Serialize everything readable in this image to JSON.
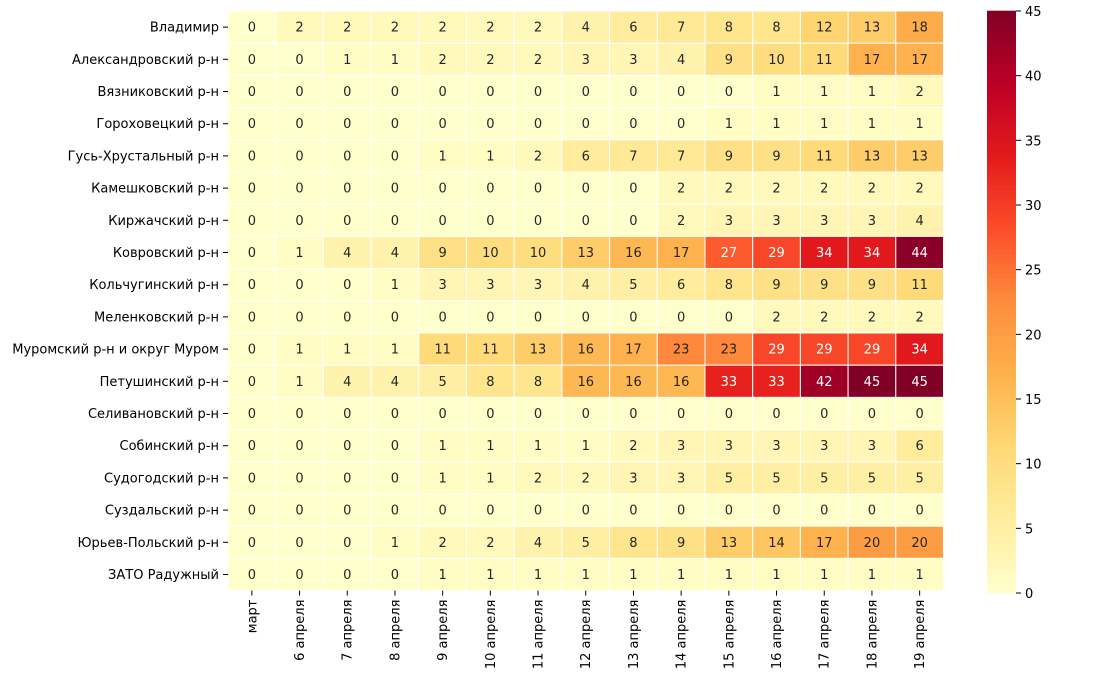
{
  "chart_data": {
    "type": "heatmap",
    "title": "",
    "xlabel": "",
    "ylabel": "",
    "x_categories": [
      "март",
      "6 апреля",
      "7 апреля",
      "8 апреля",
      "9 апреля",
      "10 апреля",
      "11 апреля",
      "12 апреля",
      "13 апреля",
      "14 апреля",
      "15 апреля",
      "16 апреля",
      "17 апреля",
      "18 апреля",
      "19 апреля"
    ],
    "y_categories": [
      "Владимир",
      "Александровский р-н",
      "Вязниковский р-н",
      "Гороховецкий р-н",
      "Гусь-Хрустальный р-н",
      "Камешковский р-н",
      "Киржачский р-н",
      "Ковровский р-н",
      "Кольчугинский р-н",
      "Меленковский р-н",
      "Муромский р-н и округ Муром",
      "Петушинский р-н",
      "Селивановский р-н",
      "Собинский р-н",
      "Судогодский р-н",
      "Суздальский р-н",
      "Юрьев-Польский р-н",
      "ЗАТО Радужный"
    ],
    "values": [
      [
        0,
        2,
        2,
        2,
        2,
        2,
        2,
        4,
        6,
        7,
        8,
        8,
        12,
        13,
        18
      ],
      [
        0,
        0,
        1,
        1,
        2,
        2,
        2,
        3,
        3,
        4,
        9,
        10,
        11,
        17,
        17
      ],
      [
        0,
        0,
        0,
        0,
        0,
        0,
        0,
        0,
        0,
        0,
        0,
        1,
        1,
        1,
        2
      ],
      [
        0,
        0,
        0,
        0,
        0,
        0,
        0,
        0,
        0,
        0,
        1,
        1,
        1,
        1,
        1
      ],
      [
        0,
        0,
        0,
        0,
        1,
        1,
        2,
        6,
        7,
        7,
        9,
        9,
        11,
        13,
        13
      ],
      [
        0,
        0,
        0,
        0,
        0,
        0,
        0,
        0,
        0,
        2,
        2,
        2,
        2,
        2,
        2
      ],
      [
        0,
        0,
        0,
        0,
        0,
        0,
        0,
        0,
        0,
        2,
        3,
        3,
        3,
        3,
        4
      ],
      [
        0,
        1,
        4,
        4,
        9,
        10,
        10,
        13,
        16,
        17,
        27,
        29,
        34,
        34,
        44
      ],
      [
        0,
        0,
        0,
        1,
        3,
        3,
        3,
        4,
        5,
        6,
        8,
        9,
        9,
        9,
        11
      ],
      [
        0,
        0,
        0,
        0,
        0,
        0,
        0,
        0,
        0,
        0,
        0,
        2,
        2,
        2,
        2
      ],
      [
        0,
        1,
        1,
        1,
        11,
        11,
        13,
        16,
        17,
        23,
        23,
        29,
        29,
        29,
        34
      ],
      [
        0,
        1,
        4,
        4,
        5,
        8,
        8,
        16,
        16,
        16,
        33,
        33,
        42,
        45,
        45
      ],
      [
        0,
        0,
        0,
        0,
        0,
        0,
        0,
        0,
        0,
        0,
        0,
        0,
        0,
        0,
        0
      ],
      [
        0,
        0,
        0,
        0,
        1,
        1,
        1,
        1,
        2,
        3,
        3,
        3,
        3,
        3,
        6
      ],
      [
        0,
        0,
        0,
        0,
        1,
        1,
        2,
        2,
        3,
        3,
        5,
        5,
        5,
        5,
        5
      ],
      [
        0,
        0,
        0,
        0,
        0,
        0,
        0,
        0,
        0,
        0,
        0,
        0,
        0,
        0,
        0
      ],
      [
        0,
        0,
        0,
        1,
        2,
        2,
        4,
        5,
        8,
        9,
        13,
        14,
        17,
        20,
        20
      ],
      [
        0,
        0,
        0,
        0,
        1,
        1,
        1,
        1,
        1,
        1,
        1,
        1,
        1,
        1,
        1
      ]
    ],
    "colormap": "YlOrRd",
    "vmin": 0,
    "vmax": 45,
    "colorbar_ticks": [
      0,
      5,
      10,
      15,
      20,
      25,
      30,
      35,
      40,
      45
    ],
    "annotations": true,
    "colors": {
      "cell_border": "#ffffff",
      "text_dark": "#262626",
      "text_light": "#ffffff"
    }
  }
}
